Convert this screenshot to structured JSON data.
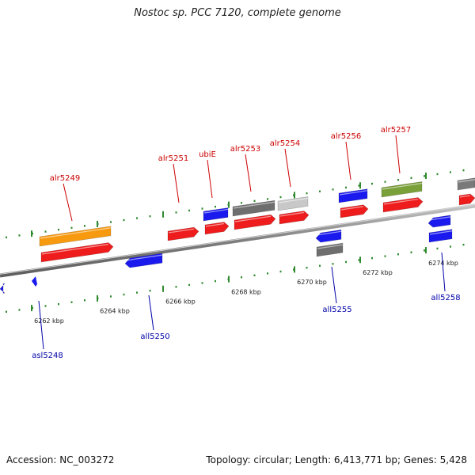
{
  "title": "Nostoc sp. PCC 7120, complete genome",
  "footer": {
    "accession": "Accession: NC_003272",
    "summary": "Topology: circular; Length: 6,413,771 bp; Genes: 5,428"
  },
  "colors": {
    "backbone": "#8a8a8a",
    "tick": "#2f8a2f",
    "label_forward": "#cc0000",
    "label_reverse": "#0000aa"
  },
  "kbp_labels": [
    "6262 kbp",
    "6264 kbp",
    "6266 kbp",
    "6268 kbp",
    "6270 kbp",
    "6272 kbp",
    "6274 kbp"
  ],
  "gene_labels": {
    "forward": [
      "alr5249",
      "alr5251",
      "ubiE",
      "alr5253",
      "alr5254",
      "alr5256",
      "alr5257"
    ],
    "reverse": [
      "asl5248",
      "all5250",
      "all5255",
      "all5258"
    ]
  }
}
